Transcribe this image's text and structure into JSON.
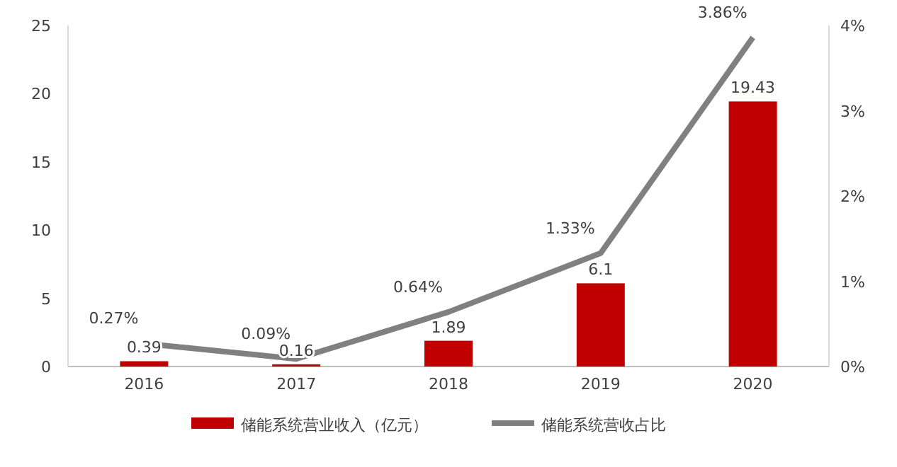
{
  "chart_data": {
    "type": "bar",
    "categories": [
      "2016",
      "2017",
      "2018",
      "2019",
      "2020"
    ],
    "series": [
      {
        "name": "储能系统营业收入（亿元）",
        "color": "#c00000",
        "values": [
          0.39,
          0.16,
          1.89,
          6.1,
          19.43
        ],
        "value_labels": [
          "0.39",
          "0.16",
          "1.89",
          "6.1",
          "19.43"
        ]
      },
      {
        "name": "储能系统营收占比",
        "type": "line",
        "axis": "y2",
        "color": "#808080",
        "values": [
          0.27,
          0.09,
          0.64,
          1.33,
          3.86
        ],
        "value_labels": [
          "0.27%",
          "0.09%",
          "0.64%",
          "1.33%",
          "3.86%"
        ]
      }
    ],
    "ylim": [
      0,
      25
    ],
    "yticks": [
      0,
      5,
      10,
      15,
      20,
      25
    ],
    "y2lim": [
      0,
      4
    ],
    "y2ticks": [
      {
        "value": 0,
        "label": "0%"
      },
      {
        "value": 1,
        "label": "1%"
      },
      {
        "value": 2,
        "label": "2%"
      },
      {
        "value": 3,
        "label": "3%"
      },
      {
        "value": 4,
        "label": "4%"
      }
    ],
    "legend": "bottom",
    "grid": false
  }
}
